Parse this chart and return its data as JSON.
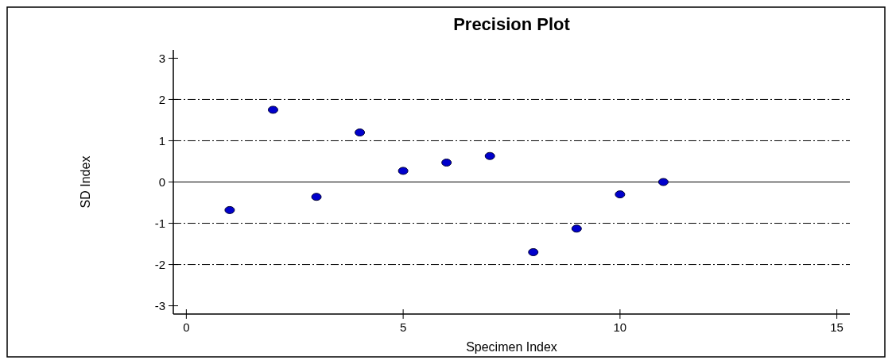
{
  "chart_data": {
    "type": "scatter",
    "title": "Precision Plot",
    "xlabel": "Specimen Index",
    "ylabel": "SD Index",
    "x": [
      1,
      2,
      3,
      4,
      5,
      6,
      7,
      8,
      9,
      10,
      11
    ],
    "values": [
      -0.68,
      1.75,
      -0.36,
      1.2,
      0.27,
      0.47,
      0.63,
      -1.7,
      -1.13,
      -0.3,
      0
    ],
    "color": "#0000cc",
    "marker": "circle",
    "xlim": [
      -0.3,
      15.3
    ],
    "xticks": [
      0,
      5,
      10,
      15
    ],
    "ylim": [
      -3.2,
      3.2
    ],
    "yticks": [
      -3,
      -2,
      -1,
      0,
      1,
      2,
      3
    ],
    "ref_lines": [
      {
        "axis": "y",
        "value": 2,
        "line_style": "dashed"
      },
      {
        "axis": "y",
        "value": 1,
        "line_style": "dashed"
      },
      {
        "axis": "y",
        "value": 0,
        "line_style": "solid"
      },
      {
        "axis": "y",
        "value": -1,
        "line_style": "dashed"
      },
      {
        "axis": "y",
        "value": -2,
        "line_style": "dashed"
      }
    ]
  }
}
